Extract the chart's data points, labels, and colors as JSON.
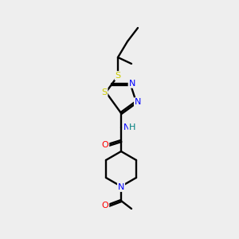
{
  "background_color": "#eeeeee",
  "bond_color": "#000000",
  "atom_colors": {
    "S": "#cccc00",
    "N": "#0000ff",
    "O": "#ff0000",
    "H": "#008080",
    "C": "#000000"
  },
  "figsize": [
    3.0,
    3.0
  ],
  "dpi": 100
}
